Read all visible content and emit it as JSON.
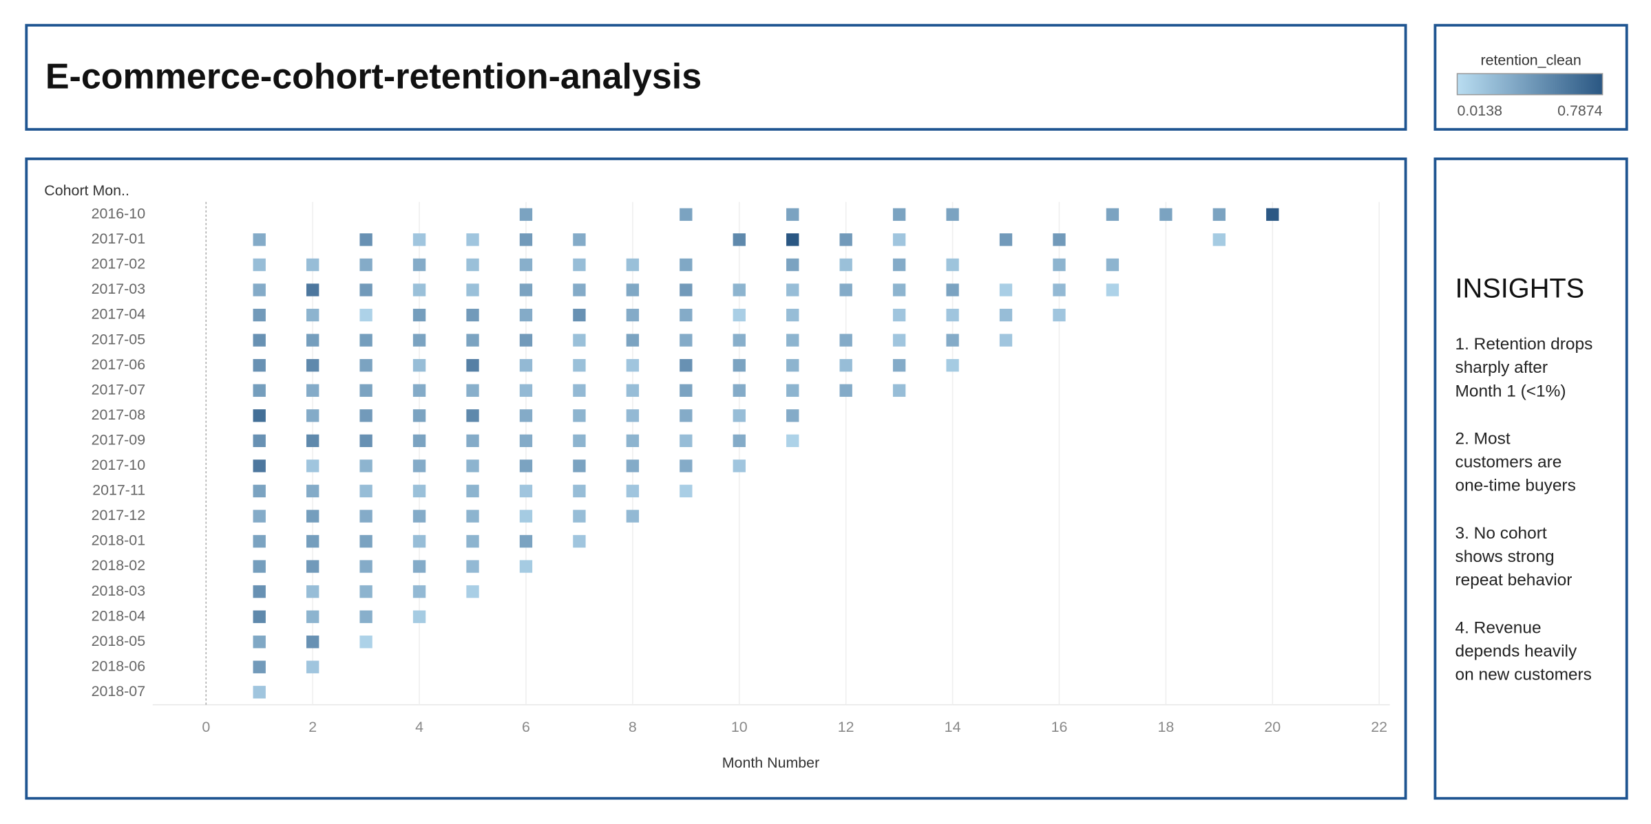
{
  "header": {
    "title": "E-commerce-cohort-retention-analysis"
  },
  "chart_data": {
    "type": "heatmap",
    "y_label": "Cohort Mon..",
    "x_label": "Month Number",
    "xlim": [
      -1,
      22.2
    ],
    "xticks": [
      0,
      2,
      4,
      6,
      8,
      10,
      12,
      14,
      16,
      18,
      20,
      22
    ],
    "grid": true,
    "color_scale": {
      "title": "retention_clean",
      "min": 0.0138,
      "max": 0.7874,
      "low_color": "#b9ddf1",
      "high_color": "#2a5783"
    },
    "categories": [
      "2016-10",
      "2017-01",
      "2017-02",
      "2017-03",
      "2017-04",
      "2017-05",
      "2017-06",
      "2017-07",
      "2017-08",
      "2017-09",
      "2017-10",
      "2017-11",
      "2017-12",
      "2018-01",
      "2018-02",
      "2018-03",
      "2018-04",
      "2018-05",
      "2018-06",
      "2018-07"
    ],
    "rows": [
      {
        "months": [
          6,
          9,
          11,
          13,
          14,
          17,
          18,
          19,
          20
        ],
        "values": [
          0.35,
          0.35,
          0.35,
          0.35,
          0.35,
          0.35,
          0.35,
          0.35,
          0.78
        ]
      },
      {
        "months": [
          1,
          3,
          4,
          5,
          6,
          7,
          10,
          11,
          12,
          13,
          15,
          16,
          19
        ],
        "values": [
          0.3,
          0.45,
          0.15,
          0.15,
          0.4,
          0.3,
          0.5,
          0.79,
          0.4,
          0.15,
          0.4,
          0.4,
          0.12
        ]
      },
      {
        "months": [
          1,
          2,
          3,
          4,
          5,
          6,
          7,
          8,
          9,
          11,
          12,
          13,
          14,
          16,
          17
        ],
        "values": [
          0.2,
          0.2,
          0.3,
          0.3,
          0.18,
          0.28,
          0.2,
          0.18,
          0.32,
          0.35,
          0.18,
          0.3,
          0.16,
          0.25,
          0.25
        ]
      },
      {
        "months": [
          1,
          2,
          3,
          4,
          5,
          6,
          7,
          8,
          9,
          10,
          11,
          12,
          13,
          14,
          15,
          16,
          17
        ],
        "values": [
          0.3,
          0.6,
          0.4,
          0.18,
          0.18,
          0.35,
          0.3,
          0.32,
          0.4,
          0.25,
          0.2,
          0.3,
          0.25,
          0.35,
          0.1,
          0.22,
          0.08
        ]
      },
      {
        "months": [
          1,
          2,
          3,
          4,
          5,
          6,
          7,
          8,
          9,
          10,
          11,
          13,
          14,
          15,
          16
        ],
        "values": [
          0.4,
          0.25,
          0.08,
          0.38,
          0.4,
          0.3,
          0.45,
          0.3,
          0.3,
          0.1,
          0.2,
          0.15,
          0.15,
          0.2,
          0.15
        ]
      },
      {
        "months": [
          1,
          2,
          3,
          4,
          5,
          6,
          7,
          8,
          9,
          10,
          11,
          12,
          13,
          14,
          15
        ],
        "values": [
          0.45,
          0.38,
          0.38,
          0.35,
          0.35,
          0.4,
          0.18,
          0.35,
          0.3,
          0.28,
          0.25,
          0.3,
          0.15,
          0.3,
          0.15
        ]
      },
      {
        "months": [
          1,
          2,
          3,
          4,
          5,
          6,
          7,
          8,
          9,
          10,
          11,
          12,
          13,
          14
        ],
        "values": [
          0.45,
          0.5,
          0.35,
          0.2,
          0.55,
          0.22,
          0.18,
          0.15,
          0.45,
          0.35,
          0.25,
          0.2,
          0.3,
          0.12
        ]
      },
      {
        "months": [
          1,
          2,
          3,
          4,
          5,
          6,
          7,
          8,
          9,
          10,
          11,
          12,
          13
        ],
        "values": [
          0.38,
          0.3,
          0.35,
          0.3,
          0.28,
          0.22,
          0.22,
          0.2,
          0.35,
          0.3,
          0.25,
          0.3,
          0.2
        ]
      },
      {
        "months": [
          1,
          2,
          3,
          4,
          5,
          6,
          7,
          8,
          9,
          10,
          11
        ],
        "values": [
          0.65,
          0.3,
          0.4,
          0.35,
          0.5,
          0.3,
          0.25,
          0.22,
          0.3,
          0.2,
          0.3
        ]
      },
      {
        "months": [
          1,
          2,
          3,
          4,
          5,
          6,
          7,
          8,
          9,
          10,
          11
        ],
        "values": [
          0.45,
          0.5,
          0.45,
          0.35,
          0.3,
          0.3,
          0.25,
          0.25,
          0.2,
          0.3,
          0.08
        ]
      },
      {
        "months": [
          1,
          2,
          3,
          4,
          5,
          6,
          7,
          8,
          9,
          10
        ],
        "values": [
          0.6,
          0.15,
          0.25,
          0.3,
          0.25,
          0.35,
          0.35,
          0.3,
          0.3,
          0.15
        ]
      },
      {
        "months": [
          1,
          2,
          3,
          4,
          5,
          6,
          7,
          8,
          9
        ],
        "values": [
          0.35,
          0.3,
          0.2,
          0.18,
          0.25,
          0.15,
          0.2,
          0.15,
          0.1
        ]
      },
      {
        "months": [
          1,
          2,
          3,
          4,
          5,
          6,
          7,
          8
        ],
        "values": [
          0.3,
          0.38,
          0.3,
          0.3,
          0.25,
          0.12,
          0.2,
          0.22
        ]
      },
      {
        "months": [
          1,
          2,
          3,
          4,
          5,
          6,
          7
        ],
        "values": [
          0.35,
          0.38,
          0.35,
          0.2,
          0.25,
          0.35,
          0.15
        ]
      },
      {
        "months": [
          1,
          2,
          3,
          4,
          5,
          6
        ],
        "values": [
          0.38,
          0.4,
          0.3,
          0.3,
          0.22,
          0.12
        ]
      },
      {
        "months": [
          1,
          2,
          3,
          4,
          5
        ],
        "values": [
          0.45,
          0.2,
          0.25,
          0.22,
          0.1
        ]
      },
      {
        "months": [
          1,
          2,
          3,
          4
        ],
        "values": [
          0.5,
          0.25,
          0.28,
          0.12
        ]
      },
      {
        "months": [
          1,
          2,
          3
        ],
        "values": [
          0.32,
          0.45,
          0.08
        ]
      },
      {
        "months": [
          1,
          2
        ],
        "values": [
          0.4,
          0.15
        ]
      },
      {
        "months": [
          1
        ],
        "values": [
          0.15
        ]
      }
    ]
  },
  "insights": {
    "title": "INSIGHTS",
    "items": [
      [
        "1. Retention drops",
        "sharply after",
        "Month 1 (<1%)"
      ],
      [
        "2. Most",
        "customers are",
        "one-time buyers"
      ],
      [
        "3. No cohort",
        "shows strong",
        "repeat behavior"
      ],
      [
        "4. Revenue",
        "depends heavily",
        "on new customers"
      ]
    ]
  }
}
